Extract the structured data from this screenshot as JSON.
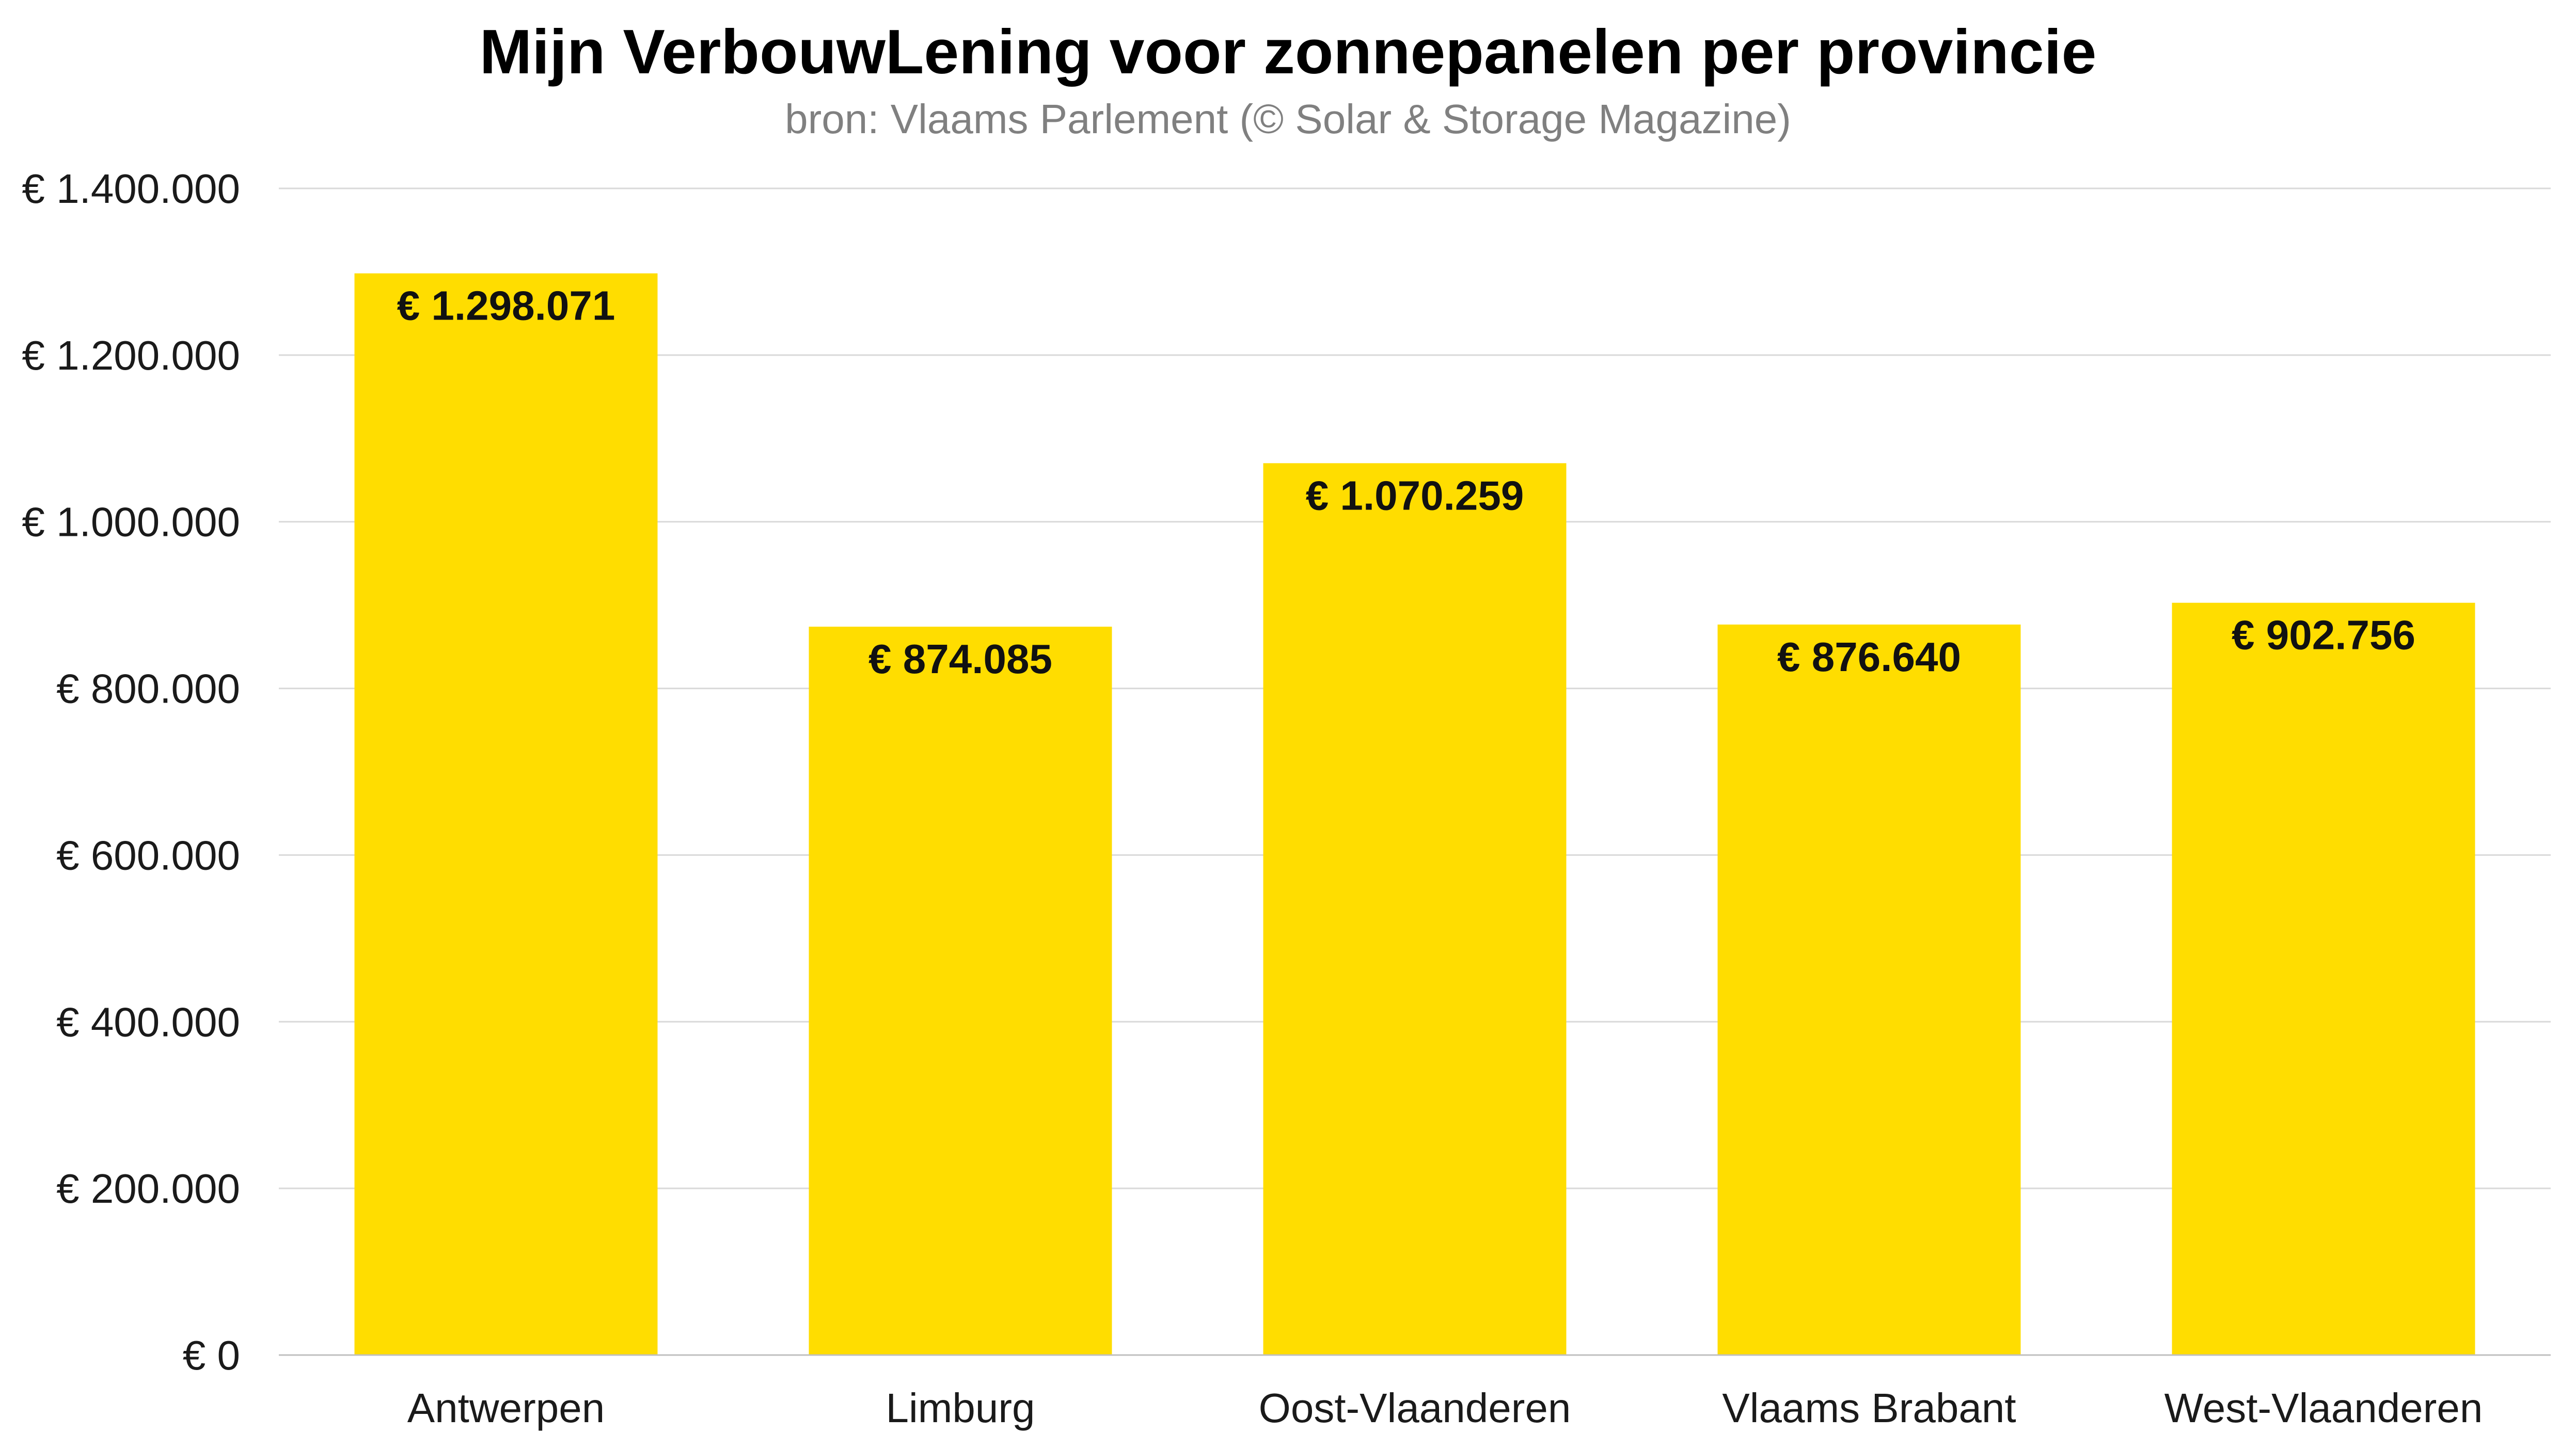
{
  "chart_data": {
    "type": "bar",
    "title": "Mijn VerbouwLening voor zonnepanelen per provincie",
    "subtitle": "bron: Vlaams Parlement (© Solar & Storage Magazine)",
    "categories": [
      "Antwerpen",
      "Limburg",
      "Oost-Vlaanderen",
      "Vlaams Brabant",
      "West-Vlaanderen"
    ],
    "values": [
      1298071,
      874085,
      1070259,
      876640,
      902756
    ],
    "data_labels": [
      "€ 1.298.071",
      "€ 874.085",
      "€ 1.070.259",
      "€ 876.640",
      "€ 902.756"
    ],
    "ylim": [
      0,
      1400000
    ],
    "yticks": [
      0,
      200000,
      400000,
      600000,
      800000,
      1000000,
      1200000,
      1400000
    ],
    "ytick_labels": [
      "€ 0",
      "€ 200.000",
      "€ 400.000",
      "€ 600.000",
      "€ 800.000",
      "€ 1.000.000",
      "€ 1.200.000",
      "€ 1.400.000"
    ],
    "xlabel": "",
    "ylabel": "",
    "grid": true,
    "legend": "none",
    "colors": {
      "bar": "#FFDD00",
      "grid": "#D9D9D9",
      "axis": "#BFBFBF"
    }
  }
}
